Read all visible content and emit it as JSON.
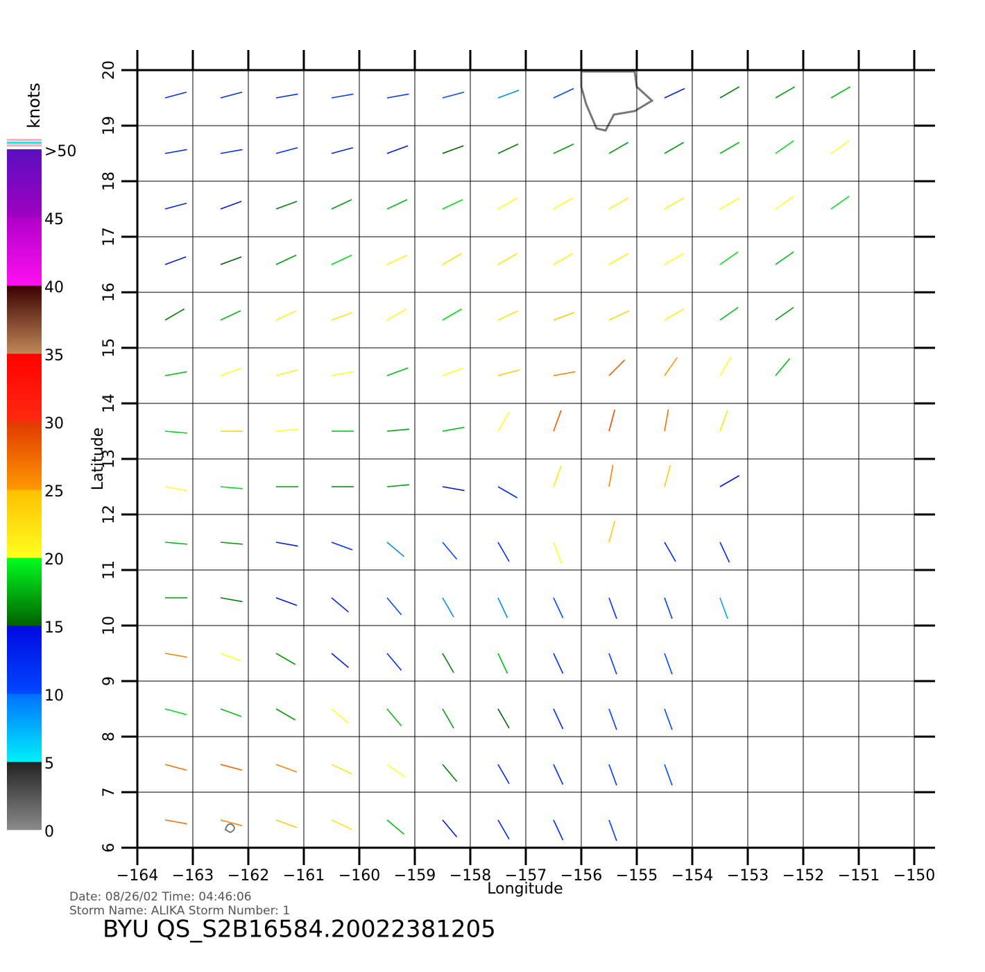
{
  "chart_data": {
    "type": "wind-map",
    "xlabel": "Longitude",
    "ylabel": "Latitude",
    "info_date": "Date: 08/26/02   Time: 04:46:06",
    "info_storm": "Storm  Name: ALIKA    Storm  Number: 1",
    "title": "BYU  QS_S2B16584.20022381205",
    "xlim": [
      -164,
      -150
    ],
    "ylim": [
      6,
      20
    ],
    "xticks": [
      {
        "value": -164,
        "label": "−164"
      },
      {
        "value": -163,
        "label": "−163"
      },
      {
        "value": -162,
        "label": "−162"
      },
      {
        "value": -161,
        "label": "−161"
      },
      {
        "value": -160,
        "label": "−160"
      },
      {
        "value": -159,
        "label": "−159"
      },
      {
        "value": -158,
        "label": "−158"
      },
      {
        "value": -157,
        "label": "−157"
      },
      {
        "value": -156,
        "label": "−156"
      },
      {
        "value": -155,
        "label": "−155"
      },
      {
        "value": -154,
        "label": "−154"
      },
      {
        "value": -153,
        "label": "−153"
      },
      {
        "value": -152,
        "label": "−152"
      },
      {
        "value": -151,
        "label": "−151"
      },
      {
        "value": -150,
        "label": "−150"
      }
    ],
    "yticks": [
      6,
      7,
      8,
      9,
      10,
      11,
      12,
      13,
      14,
      15,
      16,
      17,
      18,
      19,
      20
    ],
    "grid": true,
    "colorbar": {
      "label": "knots",
      "lim": [
        0,
        50
      ],
      "ticks": [
        0,
        5,
        10,
        15,
        20,
        25,
        30,
        35,
        40,
        45,
        {
          "value": 50,
          "label": ">50"
        }
      ],
      "colors": [
        [
          "#8a8a8a",
          "#222222"
        ],
        [
          "#00f0f8",
          "#0070ff"
        ],
        [
          "#0048ff",
          "#0008e0"
        ],
        [
          "#006000",
          "#00ff20"
        ],
        [
          "#ffff20",
          "#ffc000"
        ],
        [
          "#ff9800",
          "#e03800"
        ],
        [
          "#ff2a10",
          "#ff0000"
        ],
        [
          "#c08858",
          "#3a0000"
        ],
        [
          "#ff10f0",
          "#b000c8"
        ],
        [
          "#a000c0",
          "#5a10c0"
        ]
      ]
    },
    "grid_lon": [
      -163.5,
      -162.5,
      -161.5,
      -160.5,
      -159.5,
      -158.5,
      -157.5,
      -156.5,
      -155.5,
      -154.5,
      -153.5,
      -152.5,
      -151.5,
      -150.5
    ],
    "grid_lat": [
      19.5,
      18.5,
      17.5,
      16.5,
      15.5,
      14.5,
      13.5,
      12.5,
      11.5,
      10.5,
      9.5,
      8.5,
      7.5,
      6.5
    ],
    "speed": [
      [
        12,
        12,
        12,
        11,
        11,
        10,
        9,
        10,
        null,
        13,
        16,
        17,
        18,
        null
      ],
      [
        12,
        12,
        12,
        13,
        14,
        15,
        16,
        17,
        17,
        17,
        18,
        19,
        20,
        null
      ],
      [
        13,
        14,
        16,
        17,
        18,
        19,
        20,
        20,
        21,
        21,
        20,
        20,
        19,
        null
      ],
      [
        14,
        15,
        17,
        19,
        21,
        22,
        22,
        21,
        21,
        20,
        19,
        18,
        null,
        null
      ],
      [
        16,
        18,
        21,
        22,
        20,
        19,
        22,
        24,
        23,
        21,
        18,
        17,
        null,
        null
      ],
      [
        18,
        20,
        21,
        20,
        18,
        20,
        24,
        26,
        28,
        25,
        20,
        18,
        null,
        null
      ],
      [
        19,
        24,
        20,
        18,
        17,
        18,
        20,
        28,
        29,
        27,
        22,
        null,
        null,
        null
      ],
      [
        20,
        19,
        17,
        16,
        17,
        14,
        12,
        22,
        26,
        24,
        14,
        null,
        null,
        null
      ],
      [
        18,
        17,
        14,
        12,
        9,
        10,
        12,
        20,
        24,
        13,
        12,
        null,
        null,
        null
      ],
      [
        17,
        16,
        14,
        13,
        10,
        9,
        9,
        10,
        12,
        11,
        8,
        null,
        null,
        null
      ],
      [
        26,
        20,
        17,
        14,
        12,
        16,
        18,
        12,
        11,
        10,
        null,
        null,
        null,
        null
      ],
      [
        19,
        18,
        17,
        20,
        18,
        17,
        15,
        12,
        11,
        10,
        null,
        null,
        null,
        null
      ],
      [
        27,
        28,
        26,
        22,
        20,
        16,
        13,
        12,
        11,
        10,
        null,
        null,
        null,
        null
      ],
      [
        27,
        26,
        24,
        22,
        18,
        14,
        13,
        12,
        11,
        null,
        null,
        null,
        null,
        null
      ]
    ],
    "direction": [
      [
        75,
        75,
        80,
        80,
        80,
        75,
        70,
        65,
        null,
        65,
        60,
        60,
        60,
        null
      ],
      [
        80,
        80,
        75,
        75,
        70,
        70,
        65,
        65,
        60,
        60,
        60,
        55,
        55,
        null
      ],
      [
        75,
        70,
        70,
        65,
        65,
        65,
        60,
        60,
        60,
        60,
        60,
        55,
        55,
        null
      ],
      [
        70,
        70,
        65,
        65,
        65,
        60,
        60,
        60,
        60,
        60,
        55,
        55,
        null,
        null
      ],
      [
        60,
        65,
        65,
        70,
        60,
        60,
        65,
        70,
        65,
        60,
        55,
        55,
        null,
        null
      ],
      [
        80,
        70,
        75,
        80,
        70,
        70,
        75,
        80,
        45,
        35,
        30,
        40,
        null,
        null
      ],
      [
        95,
        90,
        85,
        90,
        85,
        80,
        30,
        20,
        15,
        10,
        20,
        null,
        null,
        null
      ],
      [
        100,
        95,
        90,
        90,
        85,
        100,
        120,
        20,
        10,
        15,
        60,
        null,
        null,
        null
      ],
      [
        95,
        95,
        100,
        110,
        130,
        140,
        150,
        160,
        15,
        150,
        155,
        null,
        null,
        null
      ],
      [
        90,
        100,
        110,
        130,
        140,
        150,
        155,
        155,
        160,
        160,
        160,
        null,
        null,
        null
      ],
      [
        100,
        110,
        120,
        130,
        140,
        150,
        155,
        155,
        160,
        160,
        null,
        null,
        null,
        null
      ],
      [
        105,
        110,
        120,
        130,
        140,
        150,
        150,
        155,
        160,
        160,
        null,
        null,
        null,
        null
      ],
      [
        105,
        105,
        110,
        115,
        125,
        140,
        150,
        155,
        160,
        160,
        null,
        null,
        null,
        null
      ],
      [
        100,
        105,
        110,
        115,
        130,
        140,
        150,
        155,
        160,
        null,
        null,
        null,
        null,
        null
      ]
    ]
  }
}
